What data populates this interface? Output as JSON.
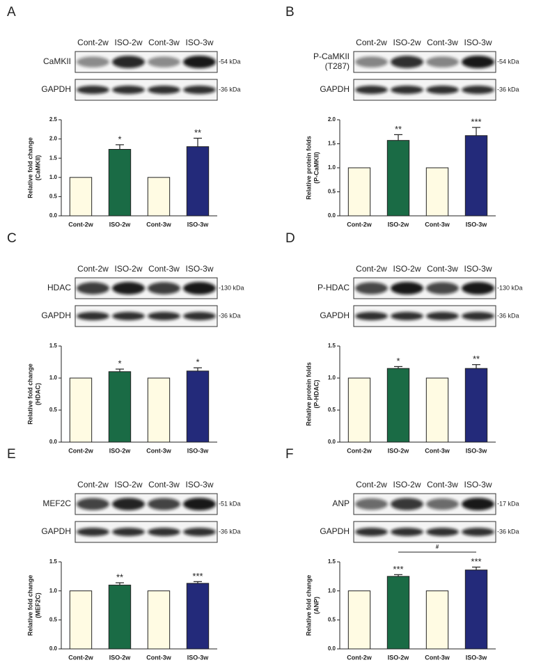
{
  "chart_data": [
    {
      "type": "bar",
      "panel": "A",
      "categories": [
        "Cont-2w",
        "ISO-2w",
        "Cont-3w",
        "ISO-3w"
      ],
      "blots": [
        {
          "label": [
            "CaMKII"
          ],
          "size": "-54 kDa"
        },
        {
          "label": [
            "GAPDH"
          ],
          "size": "-36 kDa"
        }
      ],
      "values": [
        1,
        1.73,
        1,
        1.8
      ],
      "errors": [
        0,
        0.12,
        0,
        0.22
      ],
      "significance": [
        null,
        "*",
        null,
        "**"
      ],
      "colors": [
        "#fffbe3",
        "#1a6b45",
        "#fffbe3",
        "#232a7a"
      ],
      "ylabel": [
        "Relative fold change",
        "(CaMKII)"
      ],
      "ylim": [
        0,
        2.5
      ],
      "yticks": [
        {
          "value": 0,
          "label": "0.0"
        },
        {
          "value": 0.5,
          "label": "0.5"
        },
        {
          "value": 1,
          "label": "1.0"
        },
        {
          "value": 1.5,
          "label": "1.5"
        },
        {
          "value": 2,
          "label": "2.0"
        },
        {
          "value": 2.5,
          "label": "2.5"
        }
      ]
    },
    {
      "type": "bar",
      "panel": "B",
      "categories": [
        "Cont-2w",
        "ISO-2w",
        "Cont-3w",
        "ISO-3w"
      ],
      "blots": [
        {
          "label": [
            "P-CaMKII",
            "(T287)"
          ],
          "size": "-54 kDa"
        },
        {
          "label": [
            "GAPDH"
          ],
          "size": "-36 kDa"
        }
      ],
      "values": [
        1,
        1.57,
        1,
        1.67
      ],
      "errors": [
        0,
        0.12,
        0,
        0.17
      ],
      "significance": [
        null,
        "**",
        null,
        "***"
      ],
      "colors": [
        "#fffbe3",
        "#1a6b45",
        "#fffbe3",
        "#232a7a"
      ],
      "ylabel": [
        "Relative protein folds",
        "(P-CaMKII)"
      ],
      "ylim": [
        0,
        2
      ],
      "yticks": [
        {
          "value": 0,
          "label": "0.0"
        },
        {
          "value": 0.5,
          "label": "0.5"
        },
        {
          "value": 1,
          "label": "1.0"
        },
        {
          "value": 1.5,
          "label": "1.5"
        },
        {
          "value": 2,
          "label": "2.0"
        }
      ]
    },
    {
      "type": "bar",
      "panel": "C",
      "categories": [
        "Cont-2w",
        "ISO-2w",
        "Cont-3w",
        "ISO-3w"
      ],
      "blots": [
        {
          "label": [
            "HDAC"
          ],
          "size": "-130 kDa"
        },
        {
          "label": [
            "GAPDH"
          ],
          "size": "-36 kDa"
        }
      ],
      "values": [
        1,
        1.1,
        1,
        1.11
      ],
      "errors": [
        0,
        0.04,
        0,
        0.05
      ],
      "significance": [
        null,
        "*",
        null,
        "*"
      ],
      "colors": [
        "#fffbe3",
        "#1a6b45",
        "#fffbe3",
        "#232a7a"
      ],
      "ylabel": [
        "Relative fold change",
        "(HDAC)"
      ],
      "ylim": [
        0,
        1.5
      ],
      "yticks": [
        {
          "value": 0,
          "label": "0.0"
        },
        {
          "value": 0.5,
          "label": "0.5"
        },
        {
          "value": 1,
          "label": "1.0"
        },
        {
          "value": 1.5,
          "label": "1.5"
        }
      ]
    },
    {
      "type": "bar",
      "panel": "D",
      "categories": [
        "Cont-2w",
        "ISO-2w",
        "Cont-3w",
        "ISO-3w"
      ],
      "blots": [
        {
          "label": [
            "P-HDAC"
          ],
          "size": "-130 kDa"
        },
        {
          "label": [
            "GAPDH"
          ],
          "size": "-36 kDa"
        }
      ],
      "values": [
        1,
        1.15,
        1,
        1.15
      ],
      "errors": [
        0,
        0.03,
        0,
        0.06
      ],
      "significance": [
        null,
        "*",
        null,
        "**"
      ],
      "colors": [
        "#fffbe3",
        "#1a6b45",
        "#fffbe3",
        "#232a7a"
      ],
      "ylabel": [
        "Relative protein folds",
        "(P-HDAC)"
      ],
      "ylim": [
        0,
        1.5
      ],
      "yticks": [
        {
          "value": 0,
          "label": "0.0"
        },
        {
          "value": 0.5,
          "label": "0.5"
        },
        {
          "value": 1,
          "label": "1.0"
        },
        {
          "value": 1.5,
          "label": "1.5"
        }
      ]
    },
    {
      "type": "bar",
      "panel": "E",
      "categories": [
        "Cont-2w",
        "ISO-2w",
        "Cont-3w",
        "ISO-3w"
      ],
      "blots": [
        {
          "label": [
            "MEF2C"
          ],
          "size": "-51 kDa"
        },
        {
          "label": [
            "GAPDH"
          ],
          "size": "-36 kDa"
        }
      ],
      "values": [
        1,
        1.1,
        1,
        1.13
      ],
      "errors": [
        0,
        0.04,
        0,
        0.03
      ],
      "significance": [
        null,
        "**",
        null,
        "***"
      ],
      "colors": [
        "#fffbe3",
        "#1a6b45",
        "#fffbe3",
        "#232a7a"
      ],
      "ylabel": [
        "Relative fold change",
        "(MEF2C)"
      ],
      "ylim": [
        0,
        1.5
      ],
      "yticks": [
        {
          "value": 0,
          "label": "0.0"
        },
        {
          "value": 0.5,
          "label": "0.5"
        },
        {
          "value": 1,
          "label": "1.0"
        },
        {
          "value": 1.5,
          "label": "1.5"
        }
      ]
    },
    {
      "type": "bar",
      "panel": "F",
      "categories": [
        "Cont-2w",
        "ISO-2w",
        "Cont-3w",
        "ISO-3w"
      ],
      "blots": [
        {
          "label": [
            "ANP"
          ],
          "size": "-17 kDa"
        },
        {
          "label": [
            "GAPDH"
          ],
          "size": "-36 kDa"
        }
      ],
      "values": [
        1,
        1.25,
        1,
        1.36
      ],
      "errors": [
        0,
        0.03,
        0,
        0.05
      ],
      "significance": [
        null,
        "***",
        null,
        "***"
      ],
      "annotation": "#",
      "colors": [
        "#fffbe3",
        "#1a6b45",
        "#fffbe3",
        "#232a7a"
      ],
      "ylabel": [
        "Relative fold change",
        "(ANP)"
      ],
      "ylim": [
        0,
        1.5
      ],
      "yticks": [
        {
          "value": 0,
          "label": "0.0"
        },
        {
          "value": 0.5,
          "label": "0.5"
        },
        {
          "value": 1,
          "label": "1.0"
        },
        {
          "value": 1.5,
          "label": "1.5"
        }
      ]
    }
  ]
}
